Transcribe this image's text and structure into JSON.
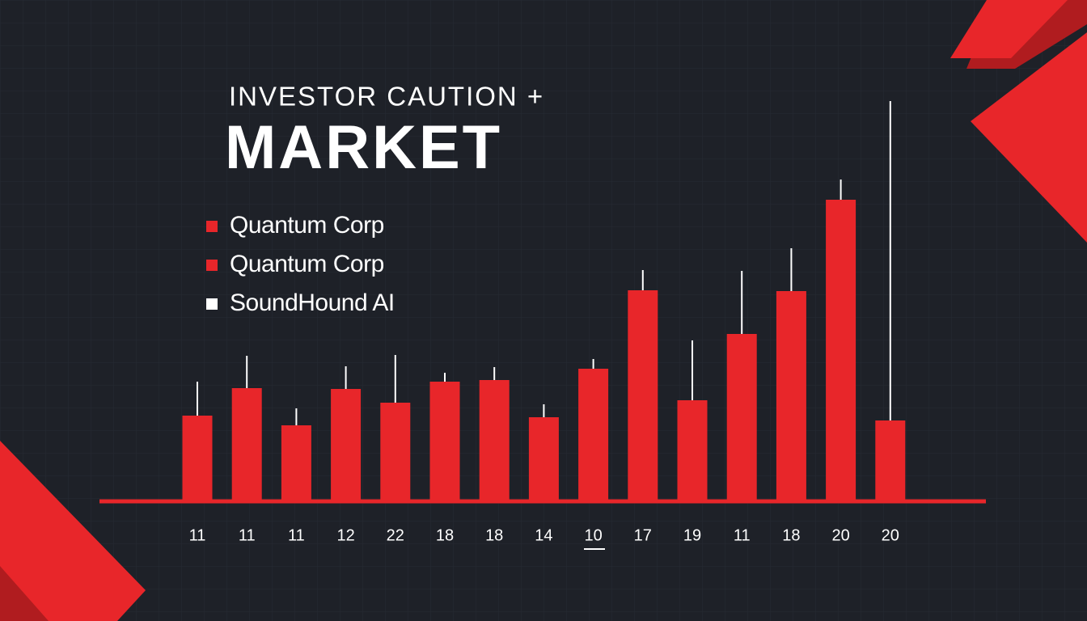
{
  "chart_data": {
    "type": "bar",
    "title": "INVESTOR CAUTION +",
    "subtitle": "MARKET",
    "legend": [
      {
        "name": "Quantum Corp",
        "color": "#e8262a"
      },
      {
        "name": "Quantum Corp",
        "color": "#e8262a"
      },
      {
        "name": "SoundHound AI",
        "color": "#ffffff"
      }
    ],
    "categories": [
      "11",
      "11",
      "11",
      "12",
      "22",
      "18",
      "18",
      "14",
      "10",
      "17",
      "19",
      "11",
      "18",
      "20",
      "20"
    ],
    "values": [
      21.2,
      28,
      18.8,
      27.8,
      24.4,
      29.6,
      30,
      20.8,
      32.8,
      52.2,
      25,
      41.4,
      52,
      74.6,
      20
    ],
    "highs": [
      29.6,
      36,
      23,
      33.4,
      36.2,
      31.8,
      33.2,
      24,
      35.2,
      57.2,
      39.8,
      57,
      62.6,
      79.6,
      99
    ],
    "color": "#e8262a",
    "whisker_color": "#ffffff",
    "ylim": [
      0,
      100
    ]
  }
}
